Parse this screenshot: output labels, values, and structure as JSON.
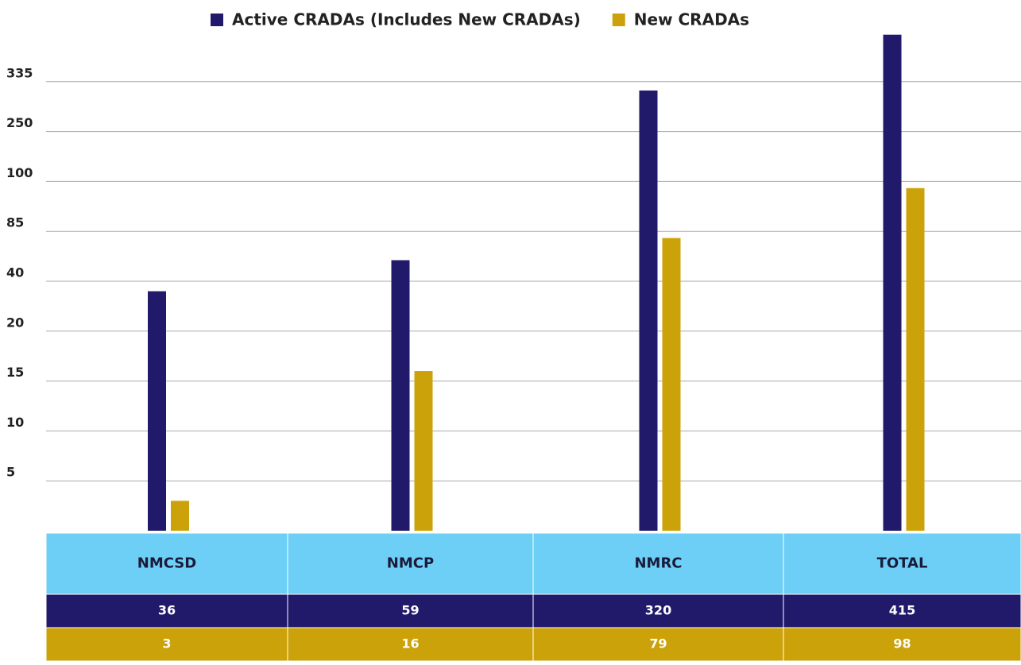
{
  "chart_data": {
    "type": "bar",
    "categories": [
      "NMCSD",
      "NMCP",
      "NMRC",
      "TOTAL"
    ],
    "series": [
      {
        "name": "Active CRADAs (Includes New CRADAs)",
        "color": "#211a6b",
        "values": [
          36,
          59,
          320,
          415
        ]
      },
      {
        "name": "New CRADAs",
        "color": "#cca20a",
        "values": [
          3,
          16,
          79,
          98
        ]
      }
    ],
    "ylim": [
      0,
      420
    ],
    "yticks": [
      5,
      10,
      15,
      20,
      40,
      85,
      100,
      250,
      335
    ],
    "axis_scale": "tick-spaced",
    "grid": true,
    "legend": "top",
    "table_header_color": "#6dcff6"
  }
}
